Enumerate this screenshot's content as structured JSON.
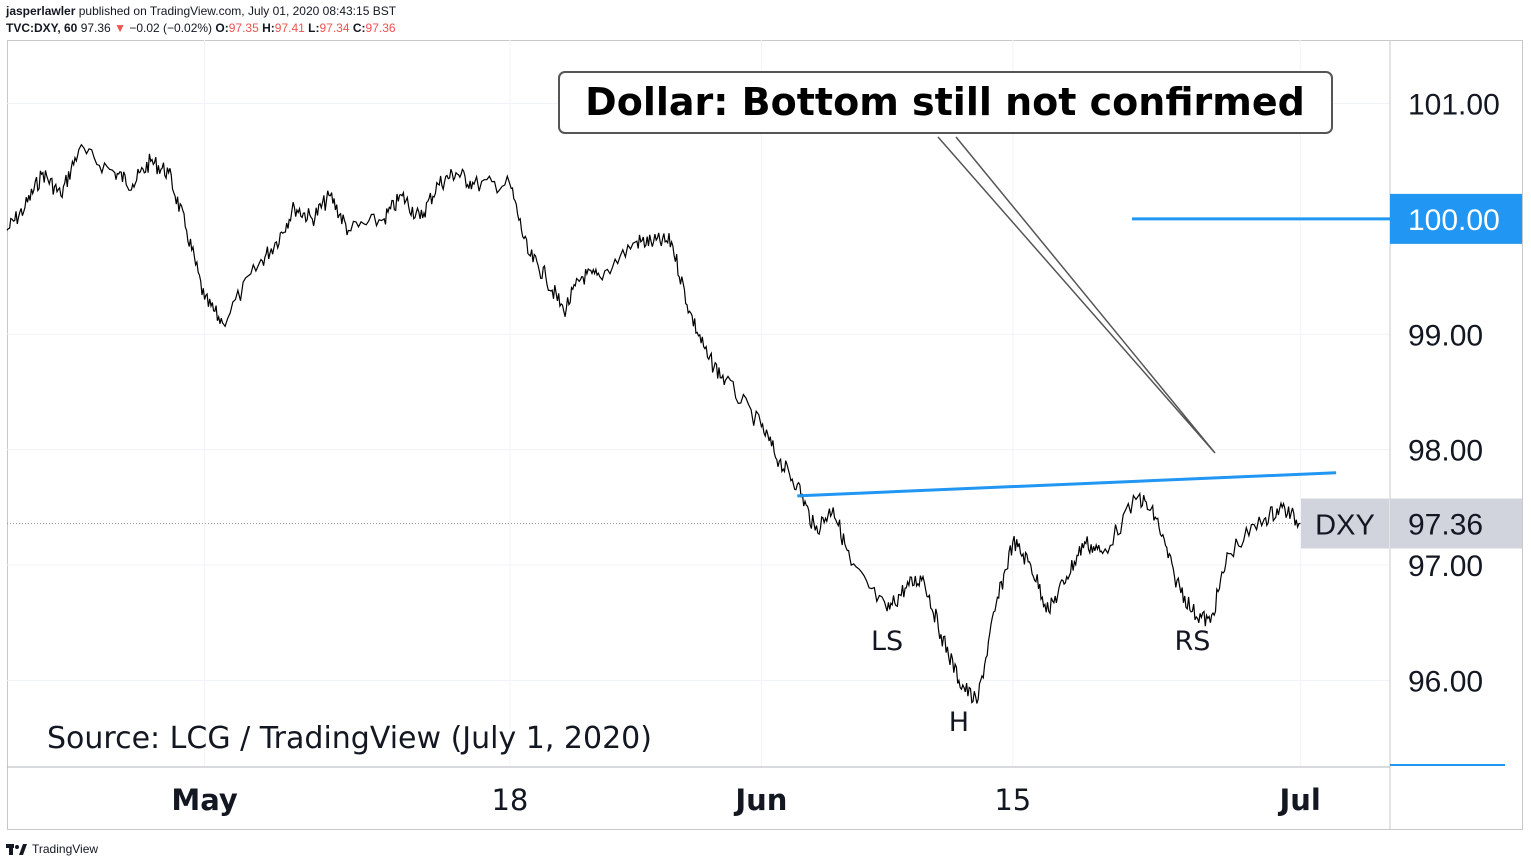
{
  "header": {
    "publisher": "jasperlawler",
    "published_text": "published on TradingView.com, July 01, 2020 08:43:15 BST",
    "symbol": "TVC:DXY, 60",
    "last": "97.36",
    "change": "−0.02 (−0.02%)",
    "o_label": "O:",
    "o_value": "97.35",
    "h_label": "H:",
    "h_value": "97.41",
    "l_label": "L:",
    "l_value": "97.34",
    "c_label": "C:",
    "c_value": "97.36"
  },
  "footer": {
    "brand": "TradingView"
  },
  "colors": {
    "price_line": "#000000",
    "neckline": "#2196f3",
    "marker": "#2196f3",
    "down": "#ef5350",
    "label_bg": "#d1d4dc"
  },
  "chart_data": {
    "type": "line",
    "title": "Dollar: Bottom still not confirmed",
    "source_note": "Source: LCG / TradingView (July 1, 2020)",
    "symbol_label": "DXY",
    "last_price_label": "97.36",
    "last_price": 97.36,
    "marker_label": "100.00",
    "marker_value": 100.0,
    "ylim": [
      95.25,
      101.55
    ],
    "y_ticks": [
      {
        "value": 96,
        "label": "96.00"
      },
      {
        "value": 97,
        "label": "97.00"
      },
      {
        "value": 98,
        "label": "98.00"
      },
      {
        "value": 99,
        "label": "99.00"
      },
      {
        "value": 101,
        "label": "101.00"
      }
    ],
    "x_domain": [
      "2020-04-20",
      "2020-07-06"
    ],
    "x_ticks": [
      {
        "date": "2020-05-01",
        "label": "May",
        "bold": true
      },
      {
        "date": "2020-05-18",
        "label": "18",
        "bold": false
      },
      {
        "date": "2020-06-01",
        "label": "Jun",
        "bold": true
      },
      {
        "date": "2020-06-15",
        "label": "15",
        "bold": false
      },
      {
        "date": "2020-07-01",
        "label": "Jul",
        "bold": true
      }
    ],
    "series": [
      {
        "values": [
          [
            "2020-04-20",
            99.9
          ],
          [
            "2020-04-21",
            100.1
          ],
          [
            "2020-04-22",
            100.4
          ],
          [
            "2020-04-23",
            100.2
          ],
          [
            "2020-04-24",
            100.6
          ],
          [
            "2020-04-26",
            100.4
          ],
          [
            "2020-04-27",
            100.3
          ],
          [
            "2020-04-28",
            100.5
          ],
          [
            "2020-04-29",
            100.4
          ],
          [
            "2020-04-30",
            99.9
          ],
          [
            "2020-05-01",
            99.3
          ],
          [
            "2020-05-02",
            99.1
          ],
          [
            "2020-05-04",
            99.6
          ],
          [
            "2020-05-05",
            99.8
          ],
          [
            "2020-05-06",
            100.1
          ],
          [
            "2020-05-07",
            100.0
          ],
          [
            "2020-05-08",
            100.2
          ],
          [
            "2020-05-09",
            99.9
          ],
          [
            "2020-05-11",
            100.0
          ],
          [
            "2020-05-12",
            100.2
          ],
          [
            "2020-05-13",
            100.0
          ],
          [
            "2020-05-14",
            100.3
          ],
          [
            "2020-05-15",
            100.4
          ],
          [
            "2020-05-16",
            100.3
          ],
          [
            "2020-05-18",
            100.3
          ],
          [
            "2020-05-19",
            99.7
          ],
          [
            "2020-05-20",
            99.5
          ],
          [
            "2020-05-21",
            99.2
          ],
          [
            "2020-05-22",
            99.5
          ],
          [
            "2020-05-23",
            99.5
          ],
          [
            "2020-05-25",
            99.8
          ],
          [
            "2020-05-26",
            99.8
          ],
          [
            "2020-05-27",
            99.8
          ],
          [
            "2020-05-28",
            99.2
          ],
          [
            "2020-05-29",
            98.8
          ],
          [
            "2020-05-30",
            98.6
          ],
          [
            "2020-06-01",
            98.2
          ],
          [
            "2020-06-02",
            97.9
          ],
          [
            "2020-06-03",
            97.7
          ],
          [
            "2020-06-04",
            97.3
          ],
          [
            "2020-06-05",
            97.5
          ],
          [
            "2020-06-06",
            97.0
          ],
          [
            "2020-06-08",
            96.6
          ],
          [
            "2020-06-09",
            96.8
          ],
          [
            "2020-06-10",
            96.9
          ],
          [
            "2020-06-11",
            96.4
          ],
          [
            "2020-06-12",
            96.0
          ],
          [
            "2020-06-13",
            95.8
          ],
          [
            "2020-06-14",
            96.6
          ],
          [
            "2020-06-15",
            97.2
          ],
          [
            "2020-06-16",
            97.0
          ],
          [
            "2020-06-17",
            96.6
          ],
          [
            "2020-06-18",
            96.9
          ],
          [
            "2020-06-19",
            97.2
          ],
          [
            "2020-06-20",
            97.1
          ],
          [
            "2020-06-22",
            97.6
          ],
          [
            "2020-06-23",
            97.4
          ],
          [
            "2020-06-24",
            96.9
          ],
          [
            "2020-06-25",
            96.6
          ],
          [
            "2020-06-26",
            96.5
          ],
          [
            "2020-06-27",
            97.1
          ],
          [
            "2020-06-29",
            97.4
          ],
          [
            "2020-06-30",
            97.5
          ],
          [
            "2020-07-01",
            97.36
          ]
        ]
      }
    ],
    "neckline": [
      [
        "2020-06-03",
        97.6
      ],
      [
        "2020-07-03",
        97.8
      ]
    ],
    "annotations": [
      {
        "label": "LS",
        "date": "2020-06-08",
        "value": 96.35
      },
      {
        "label": "H",
        "date": "2020-06-12",
        "value": 95.65
      },
      {
        "label": "RS",
        "date": "2020-06-25",
        "value": 96.35
      }
    ],
    "grid": true
  }
}
